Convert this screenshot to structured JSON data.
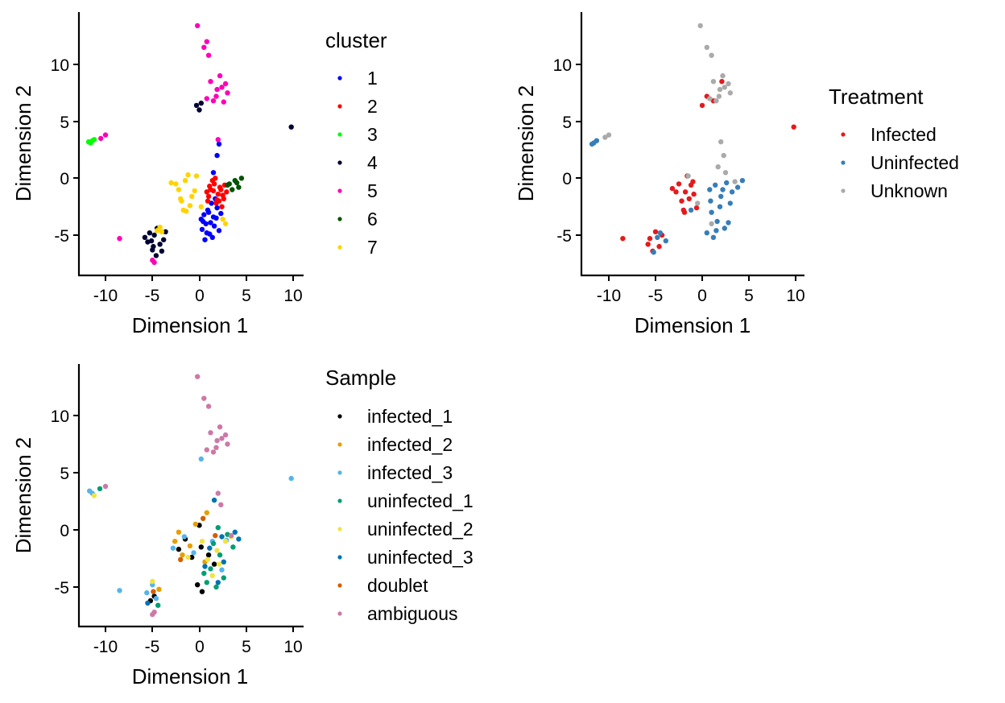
{
  "panels": [
    {
      "id": "cluster",
      "xlabel": "Dimension 1",
      "ylabel": "Dimension 2",
      "legend_title": "cluster",
      "categories": [
        {
          "label": "1",
          "color": "#0000ff"
        },
        {
          "label": "2",
          "color": "#ff0000"
        },
        {
          "label": "3",
          "color": "#00ff00"
        },
        {
          "label": "4",
          "color": "#000033"
        },
        {
          "label": "5",
          "color": "#ff00b6"
        },
        {
          "label": "6",
          "color": "#005300"
        },
        {
          "label": "7",
          "color": "#ffd300"
        }
      ]
    },
    {
      "id": "treatment",
      "xlabel": "Dimension 1",
      "ylabel": "Dimension 2",
      "legend_title": "Treatment",
      "categories": [
        {
          "label": "Infected",
          "color": "#e41a1c"
        },
        {
          "label": "Uninfected",
          "color": "#377eb8"
        },
        {
          "label": "Unknown",
          "color": "#aaaaaa"
        }
      ]
    },
    {
      "id": "sample",
      "xlabel": "Dimension 1",
      "ylabel": "Dimension 2",
      "legend_title": "Sample",
      "categories": [
        {
          "label": "infected_1",
          "color": "#000000"
        },
        {
          "label": "infected_2",
          "color": "#e69f00"
        },
        {
          "label": "infected_3",
          "color": "#56b4e9"
        },
        {
          "label": "uninfected_1",
          "color": "#009e73"
        },
        {
          "label": "uninfected_2",
          "color": "#f0e442"
        },
        {
          "label": "uninfected_3",
          "color": "#0072b2"
        },
        {
          "label": "doublet",
          "color": "#d55e00"
        },
        {
          "label": "ambiguous",
          "color": "#cc79a7"
        }
      ]
    }
  ],
  "chart_data": [
    {
      "type": "scatter",
      "title": "",
      "xlabel": "Dimension 1",
      "ylabel": "Dimension 2",
      "xlim": [
        -12.5,
        10.5
      ],
      "ylim": [
        -8.5,
        14.5
      ],
      "xticks": [
        -10,
        -5,
        0,
        5,
        10
      ],
      "xtick_labels": [
        "-10",
        "-5",
        "0",
        "5",
        "10"
      ],
      "yticks": [
        -5,
        0,
        5,
        10
      ],
      "ytick_labels": [
        "-5",
        "0",
        "5",
        "10"
      ],
      "grid": false,
      "legend_title": "cluster",
      "legend_position": "right",
      "series": [
        {
          "name": "1",
          "color": "#0000ff",
          "x": [
            0.8,
            1.2,
            0.5,
            1.6,
            0.9,
            1.8,
            0.3,
            1.4,
            1.0,
            0.7,
            1.9,
            2.1,
            0.4,
            1.3,
            0.6,
            1.5,
            1.7,
            0.2,
            1.1,
            2.3,
            1.5,
            1.9,
            2.1
          ],
          "y": [
            -4.8,
            -3.9,
            -3.2,
            -4.2,
            -2.8,
            -3.5,
            -4.5,
            -5.2,
            -3.0,
            -4.0,
            -2.6,
            -4.6,
            -3.8,
            -2.2,
            -5.4,
            -3.4,
            -1.8,
            -3.6,
            -4.9,
            -3.1,
            0.5,
            2.0,
            3.0
          ]
        },
        {
          "name": "2",
          "color": "#ff0000",
          "x": [
            1.2,
            2.0,
            1.6,
            2.6,
            1.0,
            2.2,
            1.8,
            2.9,
            1.4,
            2.4,
            0.8,
            1.9,
            2.7,
            1.5,
            2.1,
            1.1,
            2.5,
            1.7,
            2.3,
            0.9
          ],
          "y": [
            -1.0,
            -1.4,
            -0.5,
            -1.8,
            -1.6,
            -0.8,
            -2.2,
            -1.2,
            -0.2,
            -2.5,
            -1.2,
            -1.9,
            -0.6,
            -1.1,
            -2.0,
            -0.7,
            -1.5,
            0.0,
            -1.0,
            -2.0
          ]
        },
        {
          "name": "3",
          "color": "#00ff00",
          "x": [
            -11.6,
            -11.4,
            -11.8,
            -11.2
          ],
          "y": [
            3.1,
            3.3,
            3.2,
            3.4
          ]
        },
        {
          "name": "4",
          "color": "#000033",
          "x": [
            -5.5,
            -4.8,
            -4.2,
            -5.0,
            -4.5,
            -5.8,
            -3.8,
            -4.9,
            -5.3,
            -4.0,
            -3.6,
            -5.1,
            -4.6,
            0.0,
            -0.3,
            0.2,
            9.8
          ],
          "y": [
            -5.6,
            -5.0,
            -5.8,
            -6.3,
            -4.4,
            -5.2,
            -5.4,
            -6.0,
            -4.8,
            -6.4,
            -4.7,
            -5.5,
            -6.8,
            6.0,
            6.4,
            6.6,
            4.5
          ]
        },
        {
          "name": "5",
          "color": "#ff00b6",
          "x": [
            1.2,
            1.8,
            2.4,
            3.0,
            1.5,
            2.2,
            2.8,
            1.9,
            0.5,
            1.0,
            2.6,
            0.8,
            -0.2,
            0.8,
            2.0,
            -8.5,
            -10.5,
            -10.0,
            -5.0,
            -4.8
          ],
          "y": [
            8.5,
            7.2,
            8.0,
            7.5,
            6.8,
            9.0,
            8.3,
            7.8,
            11.5,
            10.8,
            6.7,
            7.0,
            13.4,
            12.0,
            3.4,
            -5.3,
            3.5,
            3.8,
            -7.2,
            -7.4
          ]
        },
        {
          "name": "6",
          "color": "#005300",
          "x": [
            3.2,
            3.8,
            4.2,
            3.5,
            4.5,
            3.0,
            4.0
          ],
          "y": [
            -0.5,
            -0.2,
            -0.8,
            -1.0,
            0.0,
            -0.6,
            -0.4
          ]
        },
        {
          "name": "7",
          "color": "#ffd300",
          "x": [
            -2.2,
            -1.5,
            -0.8,
            -1.9,
            -1.2,
            -0.5,
            -2.5,
            -1.7,
            -1.0,
            -0.3,
            -2.0,
            -1.4,
            0.2,
            -3.0,
            2.5,
            2.8,
            -4.2,
            -4.0,
            -4.5
          ],
          "y": [
            -1.0,
            -0.2,
            -1.6,
            -2.0,
            0.3,
            -1.1,
            -0.5,
            -2.8,
            -2.4,
            0.2,
            -1.8,
            -2.9,
            -2.5,
            -0.4,
            -3.6,
            -4.0,
            -4.3,
            -4.7,
            -4.6
          ]
        }
      ]
    },
    {
      "type": "scatter",
      "title": "",
      "xlabel": "Dimension 1",
      "ylabel": "Dimension 2",
      "xlim": [
        -12.5,
        10.5
      ],
      "ylim": [
        -8.5,
        14.5
      ],
      "xticks": [
        -10,
        -5,
        0,
        5,
        10
      ],
      "xtick_labels": [
        "-10",
        "-5",
        "0",
        "5",
        "10"
      ],
      "yticks": [
        -5,
        0,
        5,
        10
      ],
      "ytick_labels": [
        "-5",
        "0",
        "5",
        "10"
      ],
      "grid": false,
      "legend_title": "Treatment",
      "legend_position": "right",
      "series": [
        {
          "name": "Infected",
          "color": "#e41a1c",
          "x": [
            -2.5,
            -1.8,
            -1.0,
            -2.2,
            -1.4,
            -0.6,
            -2.8,
            -1.6,
            -0.9,
            -2.0,
            -1.2,
            -5.6,
            -5.0,
            -4.6,
            -5.3,
            -4.3,
            -5.8,
            0.5,
            1.2,
            2.1,
            9.8,
            -8.5,
            -1.9,
            -3.2,
            0.0
          ],
          "y": [
            -0.5,
            -1.2,
            -0.3,
            -2.0,
            -1.8,
            -2.6,
            -1.2,
            0.2,
            -1.4,
            -2.8,
            -0.6,
            -5.3,
            -4.7,
            -6.0,
            -6.4,
            -5.0,
            -5.8,
            7.2,
            6.8,
            8.5,
            4.5,
            -5.3,
            -3.0,
            -0.9,
            6.4
          ]
        },
        {
          "name": "Uninfected",
          "color": "#377eb8",
          "x": [
            0.8,
            1.4,
            2.0,
            2.6,
            3.2,
            3.8,
            4.3,
            1.0,
            1.6,
            2.4,
            0.5,
            1.9,
            1.2,
            2.8,
            0.9,
            1.5,
            3.0,
            2.2,
            -11.6,
            -11.3,
            -11.8,
            -4.5,
            -5.2,
            -3.9,
            -4.8,
            -1.2
          ],
          "y": [
            -1.0,
            -0.6,
            -1.6,
            -0.4,
            -1.2,
            -0.8,
            -0.2,
            -3.0,
            -3.8,
            -4.4,
            -4.8,
            -2.5,
            -5.2,
            -3.9,
            -2.0,
            -4.6,
            -2.2,
            -1.0,
            3.1,
            3.3,
            3.0,
            -4.8,
            -6.5,
            -5.5,
            -5.2,
            -2.8
          ]
        },
        {
          "name": "Unknown",
          "color": "#aaaaaa",
          "x": [
            1.2,
            1.8,
            2.4,
            3.0,
            1.5,
            2.2,
            2.8,
            1.9,
            0.5,
            1.0,
            0.8,
            -0.2,
            2.0,
            2.3,
            1.7,
            -1.5,
            -0.5,
            3.5,
            -10.0,
            -10.4,
            1.0,
            2.5
          ],
          "y": [
            8.5,
            7.2,
            8.0,
            7.5,
            6.8,
            9.0,
            8.3,
            7.8,
            11.5,
            10.8,
            7.0,
            13.4,
            3.2,
            2.0,
            1.0,
            0.2,
            -2.2,
            -0.3,
            3.8,
            3.6,
            -4.0,
            0.5
          ]
        }
      ]
    },
    {
      "type": "scatter",
      "title": "",
      "xlabel": "Dimension 1",
      "ylabel": "Dimension 2",
      "xlim": [
        -12.5,
        10.5
      ],
      "ylim": [
        -8.5,
        14.5
      ],
      "xticks": [
        -10,
        -5,
        0,
        5,
        10
      ],
      "xtick_labels": [
        "-10",
        "-5",
        "0",
        "5",
        "10"
      ],
      "yticks": [
        -5,
        0,
        5,
        10
      ],
      "ytick_labels": [
        "-5",
        "0",
        "5",
        "10"
      ],
      "grid": false,
      "legend_title": "Sample",
      "legend_position": "right",
      "series": [
        {
          "name": "infected_1",
          "color": "#000000",
          "x": [
            -1.5,
            -0.8,
            0.2,
            -0.2,
            1.0,
            0.3,
            -4.8,
            -5.2,
            -2.2,
            0.0,
            1.6
          ],
          "y": [
            -0.8,
            -2.4,
            -1.5,
            -4.8,
            -2.2,
            -5.4,
            -5.8,
            -6.2,
            -1.7,
            0.4,
            -3.0
          ]
        },
        {
          "name": "infected_2",
          "color": "#e69f00",
          "x": [
            -2.2,
            -1.0,
            -0.4,
            -2.6,
            0.6,
            -1.8,
            -4.3,
            0.8
          ],
          "y": [
            -0.2,
            -1.4,
            0.5,
            -1.0,
            -2.8,
            -2.2,
            -5.2,
            1.5
          ]
        },
        {
          "name": "infected_3",
          "color": "#56b4e9",
          "x": [
            -1.6,
            -2.8,
            -0.6,
            1.4,
            2.4,
            -5.6,
            -4.6,
            -5.0,
            9.8,
            -8.5,
            -11.4,
            -11.7,
            0.2,
            2.9
          ],
          "y": [
            -0.6,
            -1.6,
            -2.0,
            -1.0,
            -3.5,
            -5.5,
            -6.0,
            -4.8,
            4.5,
            -5.3,
            3.2,
            3.4,
            6.2,
            -0.9
          ]
        },
        {
          "name": "uninfected_1",
          "color": "#009e73",
          "x": [
            1.5,
            2.2,
            3.0,
            0.8,
            1.8,
            2.6,
            1.2,
            0.5,
            3.6,
            -10.6,
            -4.4,
            2.0
          ],
          "y": [
            -1.2,
            -2.2,
            -0.4,
            -4.6,
            -5.0,
            -4.2,
            -3.4,
            -3.8,
            -1.5,
            3.6,
            -6.6,
            0.2
          ]
        },
        {
          "name": "uninfected_2",
          "color": "#f0e442",
          "x": [
            1.9,
            2.8,
            0.9,
            1.4,
            3.4,
            2.1,
            0.3,
            -1.2,
            -5.0,
            -11.2
          ],
          "y": [
            -1.8,
            -1.0,
            -2.6,
            -4.0,
            -0.6,
            -3.0,
            -1.0,
            -2.4,
            -4.5,
            3.0
          ]
        },
        {
          "name": "uninfected_3",
          "color": "#0072b2",
          "x": [
            2.4,
            3.8,
            1.1,
            2.6,
            0.6,
            4.2,
            2.0,
            -5.5,
            1.6
          ],
          "y": [
            -0.6,
            -0.2,
            -1.6,
            -2.8,
            -3.2,
            -0.8,
            -4.6,
            -6.4,
            2.6
          ]
        },
        {
          "name": "doublet",
          "color": "#d55e00",
          "x": [
            1.7,
            -2.0,
            0.4,
            -4.9
          ],
          "y": [
            -0.5,
            -2.6,
            1.0,
            -5.4
          ]
        },
        {
          "name": "ambiguous",
          "color": "#cc79a7",
          "x": [
            1.2,
            1.8,
            2.4,
            3.0,
            1.5,
            2.2,
            2.8,
            1.9,
            0.5,
            1.0,
            -0.2,
            0.8,
            2.0,
            2.3,
            -4.8,
            -5.0,
            -10.0,
            3.4
          ],
          "y": [
            8.5,
            7.2,
            8.0,
            7.5,
            6.8,
            9.0,
            8.3,
            7.8,
            11.5,
            10.8,
            13.4,
            7.0,
            3.2,
            2.2,
            -7.2,
            -7.4,
            3.8,
            -0.5
          ]
        }
      ]
    }
  ]
}
